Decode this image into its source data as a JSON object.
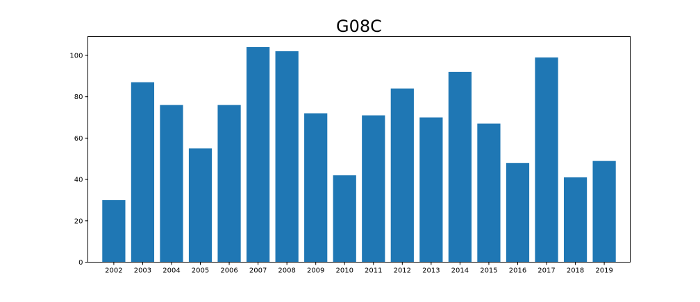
{
  "chart_data": {
    "type": "bar",
    "title": "G08C",
    "xlabel": "",
    "ylabel": "",
    "categories": [
      "2002",
      "2003",
      "2004",
      "2005",
      "2006",
      "2007",
      "2008",
      "2009",
      "2010",
      "2011",
      "2012",
      "2013",
      "2014",
      "2015",
      "2016",
      "2017",
      "2018",
      "2019"
    ],
    "values": [
      30,
      87,
      76,
      55,
      76,
      104,
      102,
      72,
      42,
      71,
      84,
      70,
      92,
      67,
      48,
      99,
      41,
      49
    ],
    "ylim": [
      0,
      109.2
    ],
    "yticks": [
      0,
      20,
      40,
      60,
      80,
      100
    ],
    "grid": false,
    "bar_color": "#1f77b4"
  }
}
